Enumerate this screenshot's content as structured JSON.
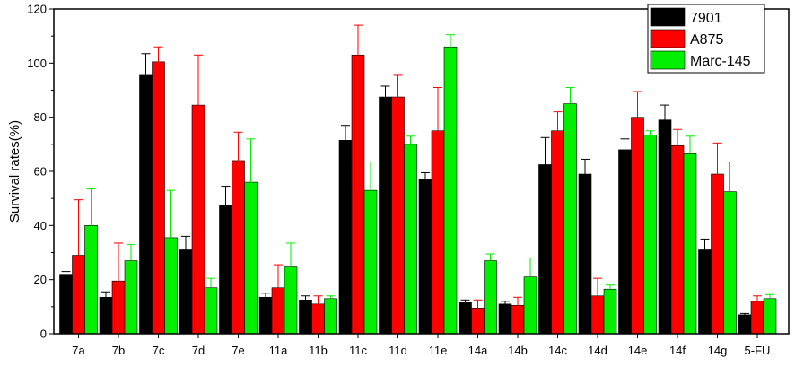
{
  "chart_data": {
    "type": "bar",
    "xlabel": "",
    "ylabel": "Survival rates(%)",
    "ylim": [
      0,
      120
    ],
    "yticks": [
      0,
      20,
      40,
      60,
      80,
      100,
      120
    ],
    "grid": false,
    "legend_position": "top-right",
    "categories": [
      "7a",
      "7b",
      "7c",
      "7d",
      "7e",
      "11a",
      "11b",
      "11c",
      "11d",
      "11e",
      "14a",
      "14b",
      "14c",
      "14d",
      "14e",
      "14f",
      "14g",
      "5-FU"
    ],
    "series": [
      {
        "name": "7901",
        "color": "#000000",
        "values": [
          22,
          13.5,
          95.5,
          31,
          47.5,
          13.5,
          12.5,
          71.5,
          87.5,
          57,
          11.5,
          11,
          62.5,
          59,
          68,
          79,
          31,
          7
        ],
        "errors": [
          1,
          2,
          8,
          5,
          7,
          1.5,
          1.5,
          5.5,
          4,
          2.5,
          1,
          1,
          10,
          5.5,
          4,
          5.5,
          4,
          0.5
        ]
      },
      {
        "name": "A875",
        "color": "#ff0000",
        "values": [
          29,
          19.5,
          100.5,
          84.5,
          64,
          17,
          11,
          103,
          87.5,
          75,
          9.5,
          10.5,
          75,
          14,
          80,
          69.5,
          59,
          12
        ],
        "errors": [
          20.5,
          14,
          5.5,
          18.5,
          10.5,
          8.5,
          3,
          11,
          8,
          16,
          3,
          3,
          7,
          6.5,
          9.5,
          6,
          11.5,
          2
        ]
      },
      {
        "name": "Marc-145",
        "color": "#00ee00",
        "values": [
          40,
          27,
          35.5,
          17,
          56,
          25,
          13,
          53,
          70,
          106,
          27,
          21,
          85,
          16.5,
          73.5,
          66.5,
          52.5,
          13
        ],
        "errors": [
          13.5,
          6,
          17.5,
          3.5,
          16,
          8.5,
          1,
          10.5,
          3,
          4.5,
          2.5,
          7,
          6,
          1.5,
          1.5,
          6.5,
          11,
          1.5
        ]
      }
    ]
  }
}
